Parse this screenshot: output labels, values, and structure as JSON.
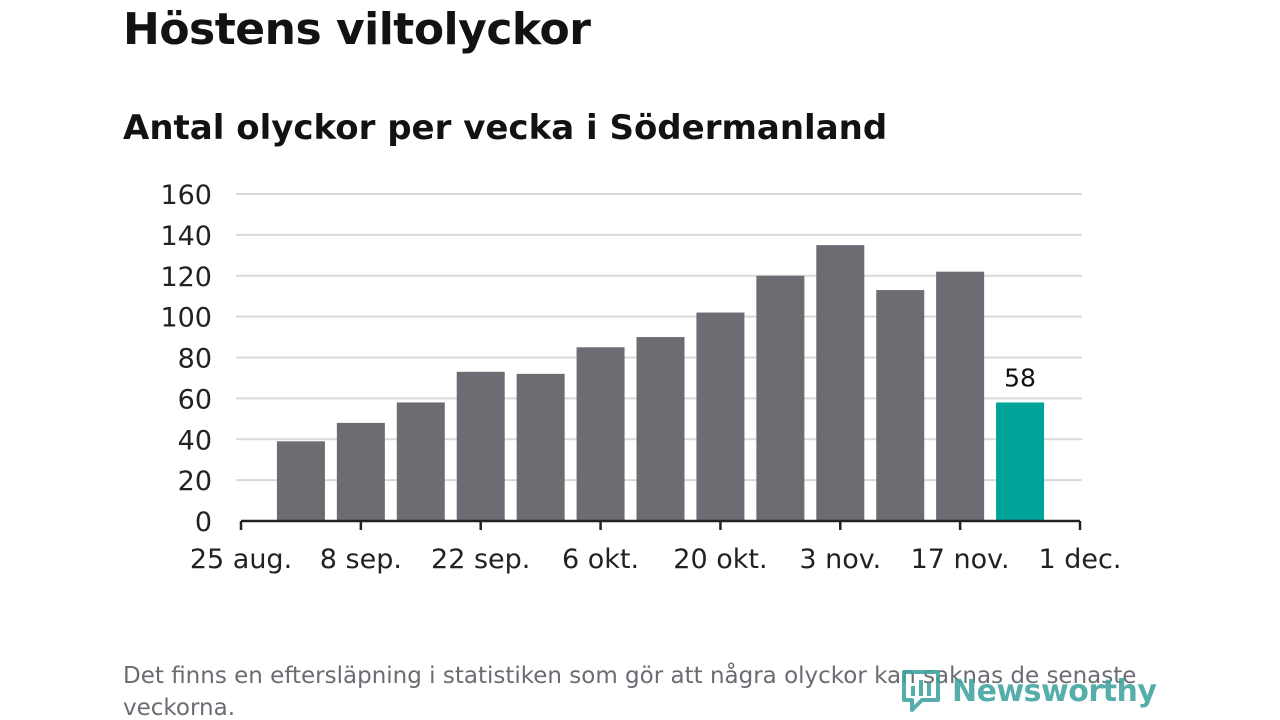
{
  "header": {
    "title": "Höstens viltolyckor",
    "subtitle": "Antal olyckor per vecka i Södermanland"
  },
  "footer": {
    "note": "Det finns en eftersläpning i statistiken som gör att några olyckor kan saknas de senaste veckorna.",
    "logo_text": "Newsworthy"
  },
  "colors": {
    "bar": "#6d6c73",
    "highlight": "#00a398",
    "gridline": "#d9d9d9",
    "axis": "#222222",
    "logo": "#3fa3a0"
  },
  "chart_data": {
    "type": "bar",
    "title": "Höstens viltolyckor",
    "subtitle": "Antal olyckor per vecka i Södermanland",
    "xlabel": "",
    "ylabel": "",
    "ylim": [
      0,
      160
    ],
    "yticks": [
      0,
      20,
      40,
      60,
      80,
      100,
      120,
      140,
      160
    ],
    "xticks": [
      "25 aug.",
      "8 sep.",
      "22 sep.",
      "6 okt.",
      "20 okt.",
      "3 nov.",
      "17 nov.",
      "1 dec."
    ],
    "grid": true,
    "values": [
      39,
      48,
      58,
      73,
      72,
      85,
      90,
      102,
      120,
      135,
      113,
      122,
      58
    ],
    "highlight_index": 12,
    "data_labels": [
      {
        "index": 12,
        "text": "58"
      }
    ]
  }
}
